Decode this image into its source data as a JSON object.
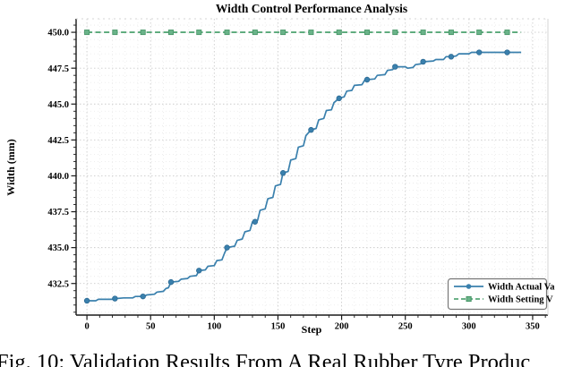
{
  "caption": {
    "text": "Fig. 10: Validation Results From A Real Rubber Tyre Produc"
  },
  "chart_data": {
    "type": "line",
    "title": "Width Control Performance Analysis",
    "xlabel": "Step",
    "ylabel": "Width (mm)",
    "xlim": [
      -8.5,
      362
    ],
    "ylim": [
      430.3,
      450.94
    ],
    "x_ticks": [
      0,
      50,
      100,
      150,
      200,
      250,
      300,
      350
    ],
    "y_ticks": [
      432.5,
      435.0,
      437.5,
      440.0,
      442.5,
      445.0,
      447.5,
      450.0
    ],
    "x_minor_step": 10,
    "y_minor_step": 0.5,
    "grid": true,
    "legend_position": "lower right",
    "legend": {
      "items": [
        {
          "label": "Width Actual Va",
          "color": "#3a80ad",
          "style": "solid",
          "marker": "circle"
        },
        {
          "label": "Width Setting V",
          "color": "#57a878",
          "style": "dashed",
          "marker": "square"
        }
      ]
    },
    "series": [
      {
        "name": "Width Actual Va",
        "color": "#3a80ad",
        "marker_edge": "#2c6a94",
        "style": "solid",
        "points": [
          [
            0,
            431.3
          ],
          [
            7,
            431.3
          ],
          [
            9,
            431.4
          ],
          [
            20,
            431.4
          ],
          [
            22,
            431.45
          ],
          [
            29,
            431.5
          ],
          [
            36,
            431.5
          ],
          [
            38,
            431.6
          ],
          [
            45,
            431.6
          ],
          [
            47,
            431.7
          ],
          [
            53,
            431.75
          ],
          [
            55,
            431.9
          ],
          [
            60,
            431.95
          ],
          [
            62,
            432.15
          ],
          [
            64,
            432.2
          ],
          [
            66,
            432.6
          ],
          [
            72,
            432.65
          ],
          [
            74,
            432.8
          ],
          [
            79,
            432.85
          ],
          [
            81,
            433.0
          ],
          [
            86,
            433.05
          ],
          [
            88,
            433.4
          ],
          [
            93,
            433.45
          ],
          [
            95,
            433.7
          ],
          [
            100,
            433.75
          ],
          [
            102,
            434.1
          ],
          [
            106,
            434.15
          ],
          [
            108,
            434.6
          ],
          [
            110,
            435.0
          ],
          [
            116,
            435.1
          ],
          [
            118,
            435.5
          ],
          [
            122,
            435.6
          ],
          [
            124,
            436.1
          ],
          [
            128,
            436.2
          ],
          [
            130,
            436.8
          ],
          [
            134,
            436.9
          ],
          [
            136,
            437.6
          ],
          [
            140,
            437.7
          ],
          [
            142,
            438.4
          ],
          [
            146,
            438.5
          ],
          [
            148,
            439.3
          ],
          [
            152,
            439.4
          ],
          [
            154,
            440.2
          ],
          [
            158,
            440.3
          ],
          [
            160,
            441.1
          ],
          [
            164,
            441.2
          ],
          [
            166,
            442.0
          ],
          [
            170,
            442.1
          ],
          [
            172,
            442.8
          ],
          [
            176,
            443.2
          ],
          [
            180,
            443.3
          ],
          [
            182,
            443.9
          ],
          [
            186,
            444.0
          ],
          [
            188,
            444.55
          ],
          [
            192,
            444.6
          ],
          [
            194,
            445.1
          ],
          [
            198,
            445.4
          ],
          [
            202,
            445.5
          ],
          [
            204,
            445.9
          ],
          [
            208,
            445.95
          ],
          [
            210,
            446.3
          ],
          [
            216,
            446.35
          ],
          [
            218,
            446.65
          ],
          [
            220,
            446.7
          ],
          [
            226,
            446.75
          ],
          [
            228,
            447.0
          ],
          [
            234,
            447.05
          ],
          [
            236,
            447.35
          ],
          [
            240,
            447.4
          ],
          [
            242,
            447.6
          ],
          [
            250,
            447.6
          ],
          [
            252,
            447.5
          ],
          [
            256,
            447.55
          ],
          [
            258,
            447.75
          ],
          [
            262,
            447.8
          ],
          [
            264,
            447.95
          ],
          [
            272,
            448.0
          ],
          [
            274,
            448.1
          ],
          [
            280,
            448.1
          ],
          [
            282,
            448.3
          ],
          [
            286,
            448.3
          ],
          [
            290,
            448.35
          ],
          [
            292,
            448.5
          ],
          [
            300,
            448.5
          ],
          [
            302,
            448.6
          ],
          [
            341,
            448.6
          ]
        ],
        "markers": [
          [
            0,
            431.3
          ],
          [
            22,
            431.45
          ],
          [
            44,
            431.6
          ],
          [
            66,
            432.6
          ],
          [
            88,
            433.4
          ],
          [
            110,
            435.0
          ],
          [
            132,
            436.8
          ],
          [
            154,
            440.2
          ],
          [
            176,
            443.2
          ],
          [
            198,
            445.4
          ],
          [
            220,
            446.7
          ],
          [
            242,
            447.6
          ],
          [
            264,
            447.95
          ],
          [
            286,
            448.3
          ],
          [
            308,
            448.6
          ],
          [
            330,
            448.6
          ]
        ]
      },
      {
        "name": "Width Setting V",
        "color": "#57a878",
        "marker_fill": "#6ab389",
        "marker_edge": "#459465",
        "style": "dashed",
        "value": 450.0,
        "x_start": 0,
        "x_end": 341,
        "marker_steps": [
          0,
          22,
          44,
          66,
          88,
          110,
          132,
          154,
          176,
          198,
          220,
          242,
          264,
          286,
          308,
          330
        ]
      }
    ],
    "colors": {
      "grid_major": "#cccccc",
      "grid_minor": "#e9e9e9",
      "spine_dark": "#1a1a1a",
      "spine_light": "#d5d5d5"
    }
  }
}
